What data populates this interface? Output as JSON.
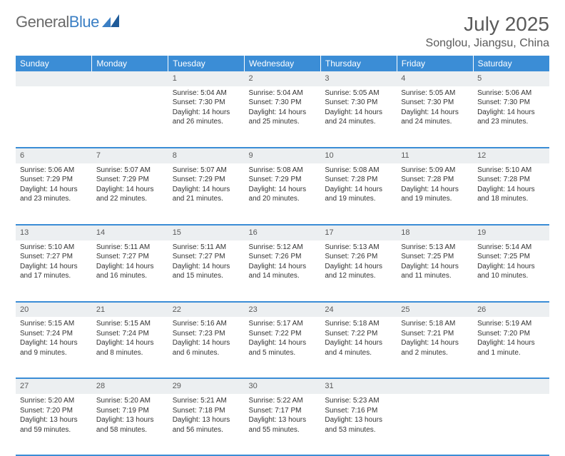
{
  "branding": {
    "logo_text_1": "General",
    "logo_text_2": "Blue",
    "logo_color_gray": "#6a6a6a",
    "logo_color_blue": "#3b7fc4"
  },
  "header": {
    "month_title": "July 2025",
    "location": "Songlou, Jiangsu, China"
  },
  "colors": {
    "header_bar": "#3b8dd6",
    "header_text": "#ffffff",
    "daynum_bg": "#eceff1",
    "body_text": "#333333",
    "divider": "#3b8dd6",
    "page_bg": "#ffffff"
  },
  "weekdays": [
    "Sunday",
    "Monday",
    "Tuesday",
    "Wednesday",
    "Thursday",
    "Friday",
    "Saturday"
  ],
  "weeks": [
    [
      null,
      null,
      {
        "n": "1",
        "sr": "Sunrise: 5:04 AM",
        "ss": "Sunset: 7:30 PM",
        "dl": "Daylight: 14 hours and 26 minutes."
      },
      {
        "n": "2",
        "sr": "Sunrise: 5:04 AM",
        "ss": "Sunset: 7:30 PM",
        "dl": "Daylight: 14 hours and 25 minutes."
      },
      {
        "n": "3",
        "sr": "Sunrise: 5:05 AM",
        "ss": "Sunset: 7:30 PM",
        "dl": "Daylight: 14 hours and 24 minutes."
      },
      {
        "n": "4",
        "sr": "Sunrise: 5:05 AM",
        "ss": "Sunset: 7:30 PM",
        "dl": "Daylight: 14 hours and 24 minutes."
      },
      {
        "n": "5",
        "sr": "Sunrise: 5:06 AM",
        "ss": "Sunset: 7:30 PM",
        "dl": "Daylight: 14 hours and 23 minutes."
      }
    ],
    [
      {
        "n": "6",
        "sr": "Sunrise: 5:06 AM",
        "ss": "Sunset: 7:29 PM",
        "dl": "Daylight: 14 hours and 23 minutes."
      },
      {
        "n": "7",
        "sr": "Sunrise: 5:07 AM",
        "ss": "Sunset: 7:29 PM",
        "dl": "Daylight: 14 hours and 22 minutes."
      },
      {
        "n": "8",
        "sr": "Sunrise: 5:07 AM",
        "ss": "Sunset: 7:29 PM",
        "dl": "Daylight: 14 hours and 21 minutes."
      },
      {
        "n": "9",
        "sr": "Sunrise: 5:08 AM",
        "ss": "Sunset: 7:29 PM",
        "dl": "Daylight: 14 hours and 20 minutes."
      },
      {
        "n": "10",
        "sr": "Sunrise: 5:08 AM",
        "ss": "Sunset: 7:28 PM",
        "dl": "Daylight: 14 hours and 19 minutes."
      },
      {
        "n": "11",
        "sr": "Sunrise: 5:09 AM",
        "ss": "Sunset: 7:28 PM",
        "dl": "Daylight: 14 hours and 19 minutes."
      },
      {
        "n": "12",
        "sr": "Sunrise: 5:10 AM",
        "ss": "Sunset: 7:28 PM",
        "dl": "Daylight: 14 hours and 18 minutes."
      }
    ],
    [
      {
        "n": "13",
        "sr": "Sunrise: 5:10 AM",
        "ss": "Sunset: 7:27 PM",
        "dl": "Daylight: 14 hours and 17 minutes."
      },
      {
        "n": "14",
        "sr": "Sunrise: 5:11 AM",
        "ss": "Sunset: 7:27 PM",
        "dl": "Daylight: 14 hours and 16 minutes."
      },
      {
        "n": "15",
        "sr": "Sunrise: 5:11 AM",
        "ss": "Sunset: 7:27 PM",
        "dl": "Daylight: 14 hours and 15 minutes."
      },
      {
        "n": "16",
        "sr": "Sunrise: 5:12 AM",
        "ss": "Sunset: 7:26 PM",
        "dl": "Daylight: 14 hours and 14 minutes."
      },
      {
        "n": "17",
        "sr": "Sunrise: 5:13 AM",
        "ss": "Sunset: 7:26 PM",
        "dl": "Daylight: 14 hours and 12 minutes."
      },
      {
        "n": "18",
        "sr": "Sunrise: 5:13 AM",
        "ss": "Sunset: 7:25 PM",
        "dl": "Daylight: 14 hours and 11 minutes."
      },
      {
        "n": "19",
        "sr": "Sunrise: 5:14 AM",
        "ss": "Sunset: 7:25 PM",
        "dl": "Daylight: 14 hours and 10 minutes."
      }
    ],
    [
      {
        "n": "20",
        "sr": "Sunrise: 5:15 AM",
        "ss": "Sunset: 7:24 PM",
        "dl": "Daylight: 14 hours and 9 minutes."
      },
      {
        "n": "21",
        "sr": "Sunrise: 5:15 AM",
        "ss": "Sunset: 7:24 PM",
        "dl": "Daylight: 14 hours and 8 minutes."
      },
      {
        "n": "22",
        "sr": "Sunrise: 5:16 AM",
        "ss": "Sunset: 7:23 PM",
        "dl": "Daylight: 14 hours and 6 minutes."
      },
      {
        "n": "23",
        "sr": "Sunrise: 5:17 AM",
        "ss": "Sunset: 7:22 PM",
        "dl": "Daylight: 14 hours and 5 minutes."
      },
      {
        "n": "24",
        "sr": "Sunrise: 5:18 AM",
        "ss": "Sunset: 7:22 PM",
        "dl": "Daylight: 14 hours and 4 minutes."
      },
      {
        "n": "25",
        "sr": "Sunrise: 5:18 AM",
        "ss": "Sunset: 7:21 PM",
        "dl": "Daylight: 14 hours and 2 minutes."
      },
      {
        "n": "26",
        "sr": "Sunrise: 5:19 AM",
        "ss": "Sunset: 7:20 PM",
        "dl": "Daylight: 14 hours and 1 minute."
      }
    ],
    [
      {
        "n": "27",
        "sr": "Sunrise: 5:20 AM",
        "ss": "Sunset: 7:20 PM",
        "dl": "Daylight: 13 hours and 59 minutes."
      },
      {
        "n": "28",
        "sr": "Sunrise: 5:20 AM",
        "ss": "Sunset: 7:19 PM",
        "dl": "Daylight: 13 hours and 58 minutes."
      },
      {
        "n": "29",
        "sr": "Sunrise: 5:21 AM",
        "ss": "Sunset: 7:18 PM",
        "dl": "Daylight: 13 hours and 56 minutes."
      },
      {
        "n": "30",
        "sr": "Sunrise: 5:22 AM",
        "ss": "Sunset: 7:17 PM",
        "dl": "Daylight: 13 hours and 55 minutes."
      },
      {
        "n": "31",
        "sr": "Sunrise: 5:23 AM",
        "ss": "Sunset: 7:16 PM",
        "dl": "Daylight: 13 hours and 53 minutes."
      },
      null,
      null
    ]
  ]
}
